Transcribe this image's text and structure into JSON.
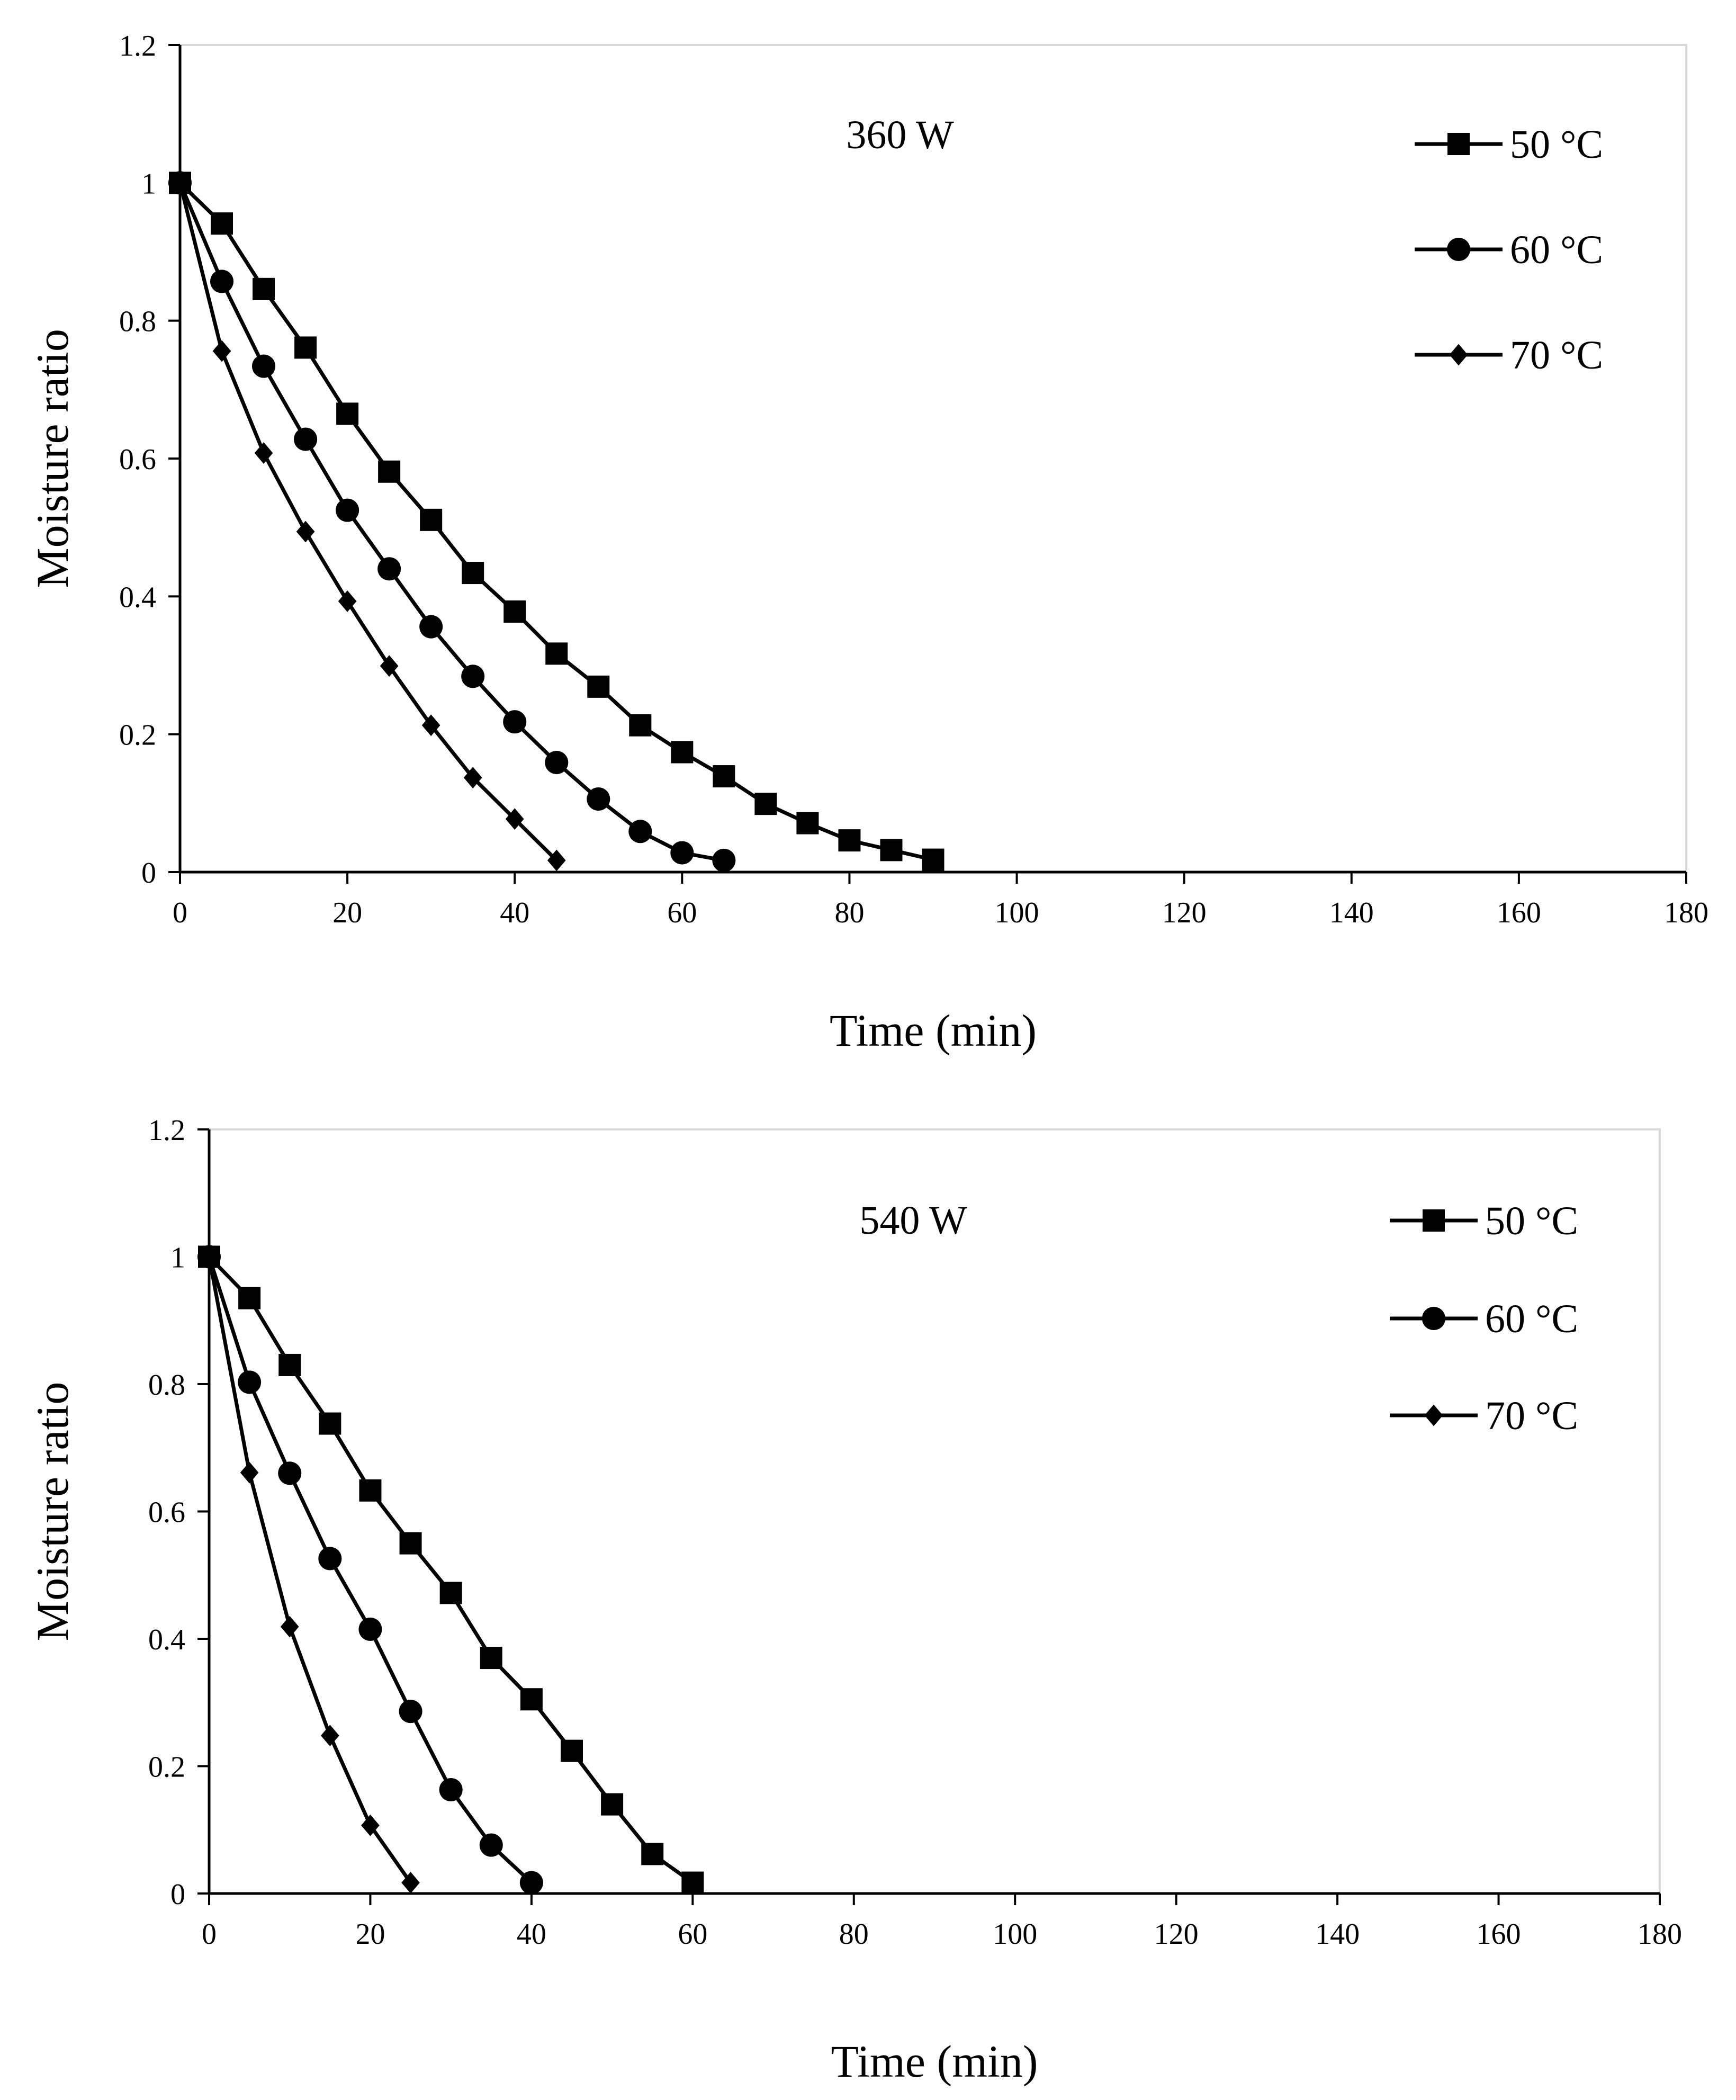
{
  "chart_data": [
    {
      "type": "line",
      "annotation": "360 W",
      "xlabel": "Time (min)",
      "ylabel": "Moisture ratio",
      "xlim": [
        0,
        180
      ],
      "ylim": [
        0,
        1.2
      ],
      "x_ticks": [
        "0",
        "20",
        "40",
        "60",
        "80",
        "100",
        "120",
        "140",
        "160",
        "180"
      ],
      "y_ticks": [
        "0",
        "0.2",
        "0.4",
        "0.6",
        "0.8",
        "1",
        "1.2"
      ],
      "legend_position": "top-right",
      "grid": false,
      "series": [
        {
          "name": "50 °C",
          "marker": "square",
          "x": [
            0,
            5,
            10,
            15,
            20,
            25,
            30,
            35,
            40,
            45,
            50,
            55,
            60,
            65,
            70,
            75,
            80,
            85,
            90
          ],
          "y": [
            1.0,
            0.941,
            0.846,
            0.761,
            0.665,
            0.581,
            0.511,
            0.434,
            0.378,
            0.317,
            0.269,
            0.213,
            0.174,
            0.139,
            0.099,
            0.071,
            0.046,
            0.032,
            0.018
          ]
        },
        {
          "name": "60 °C",
          "marker": "circle",
          "x": [
            0,
            5,
            10,
            15,
            20,
            25,
            30,
            35,
            40,
            45,
            50,
            55,
            60,
            65
          ],
          "y": [
            1.0,
            0.857,
            0.734,
            0.628,
            0.525,
            0.44,
            0.356,
            0.284,
            0.218,
            0.159,
            0.106,
            0.059,
            0.028,
            0.017
          ]
        },
        {
          "name": "70 °C",
          "marker": "diamond",
          "x": [
            0,
            5,
            10,
            15,
            20,
            25,
            30,
            35,
            40,
            45
          ],
          "y": [
            1.0,
            0.756,
            0.608,
            0.494,
            0.393,
            0.299,
            0.213,
            0.137,
            0.077,
            0.017
          ]
        }
      ]
    },
    {
      "type": "line",
      "annotation": "540 W",
      "xlabel": "Time (min)",
      "ylabel": "Moisture ratio",
      "xlim": [
        0,
        180
      ],
      "ylim": [
        0,
        1.2
      ],
      "x_ticks": [
        "0",
        "20",
        "40",
        "60",
        "80",
        "100",
        "120",
        "140",
        "160",
        "180"
      ],
      "y_ticks": [
        "0",
        "0.2",
        "0.4",
        "0.6",
        "0.8",
        "1",
        "1.2"
      ],
      "legend_position": "top-right",
      "grid": false,
      "series": [
        {
          "name": "50 °C",
          "marker": "square",
          "x": [
            0,
            5,
            10,
            15,
            20,
            25,
            30,
            35,
            40,
            45,
            50,
            55,
            60
          ],
          "y": [
            1.0,
            0.935,
            0.83,
            0.738,
            0.633,
            0.55,
            0.472,
            0.37,
            0.305,
            0.224,
            0.14,
            0.062,
            0.017
          ]
        },
        {
          "name": "60 °C",
          "marker": "circle",
          "x": [
            0,
            5,
            10,
            15,
            20,
            25,
            30,
            35,
            40
          ],
          "y": [
            1.0,
            0.803,
            0.66,
            0.526,
            0.415,
            0.286,
            0.163,
            0.076,
            0.017
          ]
        },
        {
          "name": "70 °C",
          "marker": "diamond",
          "x": [
            0,
            5,
            10,
            15,
            20,
            25
          ],
          "y": [
            1.0,
            0.661,
            0.419,
            0.248,
            0.107,
            0.017
          ]
        }
      ]
    }
  ]
}
